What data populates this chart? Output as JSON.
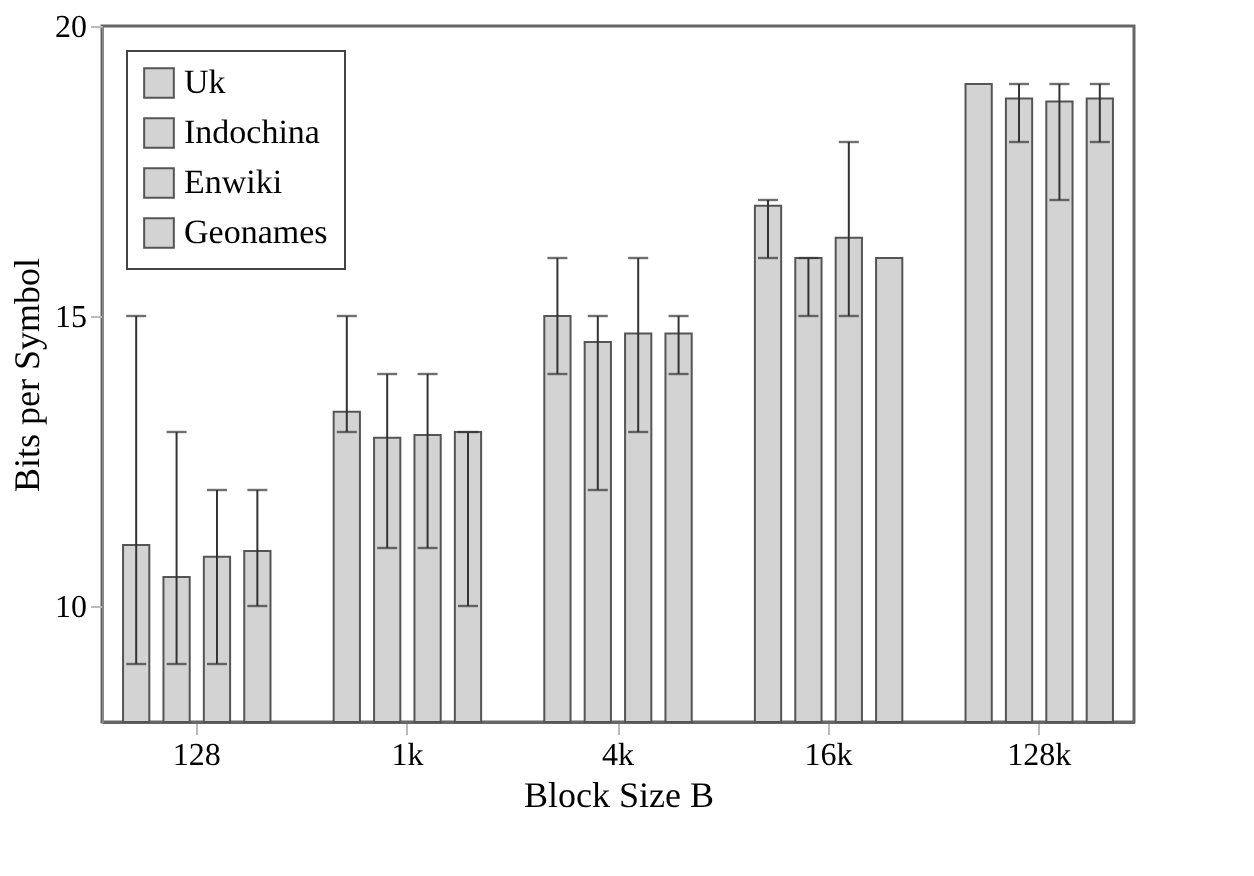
{
  "chart_data": {
    "type": "bar",
    "xlabel": "Block Size B",
    "ylabel": "Bits per Symbol",
    "categories": [
      "128",
      "1k",
      "4k",
      "16k",
      "128k"
    ],
    "series": [
      {
        "name": "Uk",
        "color": "#d3d3d3",
        "values": [
          11.05,
          13.35,
          15.0,
          16.9,
          19.0
        ],
        "errors": [
          [
            9,
            15
          ],
          [
            13,
            15
          ],
          [
            14,
            16
          ],
          [
            16,
            17
          ],
          null
        ]
      },
      {
        "name": "Indochina",
        "color": "#d3d3d3",
        "values": [
          10.5,
          12.9,
          14.55,
          16.0,
          18.75
        ],
        "errors": [
          [
            9,
            13
          ],
          [
            11,
            14
          ],
          [
            12,
            15
          ],
          [
            15,
            16
          ],
          [
            18,
            19
          ]
        ]
      },
      {
        "name": "Enwiki",
        "color": "#d3d3d3",
        "values": [
          10.85,
          12.95,
          14.7,
          16.35,
          18.7
        ],
        "errors": [
          [
            9,
            12
          ],
          [
            11,
            14
          ],
          [
            13,
            16
          ],
          [
            15,
            18
          ],
          [
            17,
            19
          ]
        ]
      },
      {
        "name": "Geonames",
        "color": "#d3d3d3",
        "values": [
          10.95,
          13.0,
          14.7,
          16.0,
          18.75
        ],
        "errors": [
          [
            10,
            12
          ],
          [
            10,
            13
          ],
          [
            14,
            15
          ],
          null,
          [
            18,
            19
          ]
        ]
      }
    ],
    "ylim": [
      8,
      20
    ],
    "yticks": [
      10,
      15,
      20
    ],
    "grid": false,
    "legend": "top left"
  }
}
